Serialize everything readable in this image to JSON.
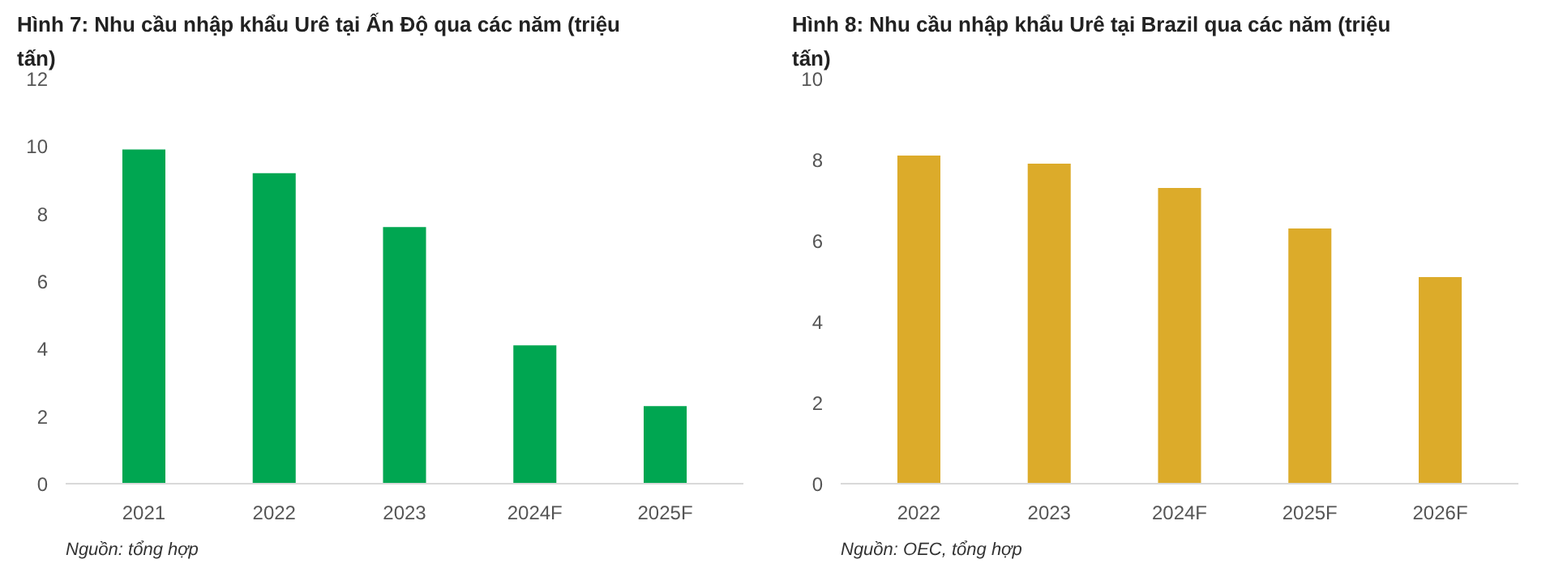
{
  "chart_data": [
    {
      "type": "bar",
      "title": "Hình 7: Nhu cầu nhập khẩu Urê tại Ấn Độ qua các năm (triệu tấn)",
      "categories": [
        "2021",
        "2022",
        "2023",
        "2024F",
        "2025F"
      ],
      "values": [
        9.9,
        9.2,
        7.6,
        4.1,
        2.3
      ],
      "color": "#00a651",
      "ylim": [
        0,
        12
      ],
      "yticks": [
        0,
        2,
        4,
        6,
        8,
        10,
        12
      ],
      "grid": false,
      "annotations": [
        "Nguồn: tổng hợp"
      ]
    },
    {
      "type": "bar",
      "title": "Hình 8: Nhu cầu nhập khẩu Urê tại Brazil qua các năm (triệu tấn)",
      "categories": [
        "2022",
        "2023",
        "2024F",
        "2025F",
        "2026F"
      ],
      "values": [
        8.1,
        7.9,
        7.3,
        6.3,
        5.1
      ],
      "color": "#dcab2a",
      "ylim": [
        0,
        10
      ],
      "yticks": [
        0,
        2,
        4,
        6,
        8,
        10
      ],
      "grid": false,
      "annotations": [
        "Nguồn: OEC, tổng hợp"
      ]
    }
  ]
}
